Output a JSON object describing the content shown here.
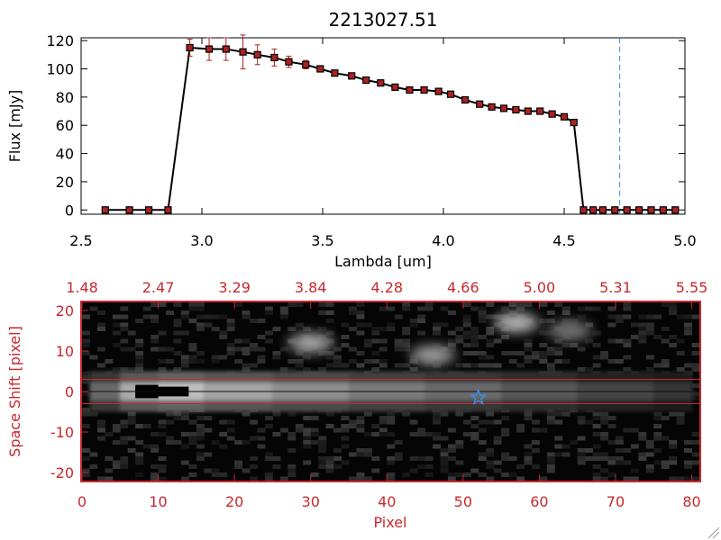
{
  "chart_data": [
    {
      "type": "line",
      "title": "2213027.51",
      "xlabel": "Lambda [um]",
      "ylabel": "Flux [mJy]",
      "xlim": [
        2.5,
        5.0
      ],
      "ylim": [
        -3,
        122
      ],
      "xticks": [
        "2.5",
        "3.0",
        "3.5",
        "4.0",
        "4.5",
        "5.0"
      ],
      "yticks": [
        "0",
        "20",
        "40",
        "60",
        "80",
        "100",
        "120"
      ],
      "marker_color": "#aa2222",
      "line_color": "#000000",
      "reference_line": {
        "x": 4.73,
        "color": "#3b8fe0",
        "style": "dashed"
      },
      "series": [
        {
          "points": [
            [
              2.6,
              0
            ],
            [
              2.7,
              0
            ],
            [
              2.78,
              0
            ],
            [
              2.86,
              0
            ],
            [
              2.95,
              115
            ],
            [
              3.03,
              114
            ],
            [
              3.1,
              114
            ],
            [
              3.17,
              112
            ],
            [
              3.23,
              110
            ],
            [
              3.3,
              108
            ],
            [
              3.36,
              105
            ],
            [
              3.43,
              103
            ],
            [
              3.49,
              100
            ],
            [
              3.55,
              97
            ],
            [
              3.62,
              95
            ],
            [
              3.68,
              92
            ],
            [
              3.74,
              90
            ],
            [
              3.8,
              87
            ],
            [
              3.86,
              85
            ],
            [
              3.92,
              85
            ],
            [
              3.98,
              84
            ],
            [
              4.03,
              82
            ],
            [
              4.09,
              78
            ],
            [
              4.15,
              75
            ],
            [
              4.2,
              73
            ],
            [
              4.25,
              72
            ],
            [
              4.3,
              71
            ],
            [
              4.35,
              70
            ],
            [
              4.4,
              70
            ],
            [
              4.45,
              68
            ],
            [
              4.5,
              66
            ],
            [
              4.54,
              62
            ],
            [
              4.58,
              0
            ],
            [
              4.62,
              0
            ],
            [
              4.66,
              0
            ],
            [
              4.71,
              0
            ],
            [
              4.76,
              0
            ],
            [
              4.81,
              0
            ],
            [
              4.86,
              0
            ],
            [
              4.91,
              0
            ],
            [
              4.96,
              0
            ]
          ],
          "errors": [
            0,
            0,
            0,
            0,
            6,
            8,
            8,
            12,
            7,
            6,
            4,
            3,
            2,
            2,
            2,
            2,
            2,
            2,
            1,
            1,
            1,
            1,
            1,
            1,
            1,
            1,
            1,
            1,
            1,
            1,
            1,
            1,
            0,
            0,
            0,
            0,
            0,
            0,
            0,
            0,
            0
          ]
        }
      ]
    },
    {
      "type": "heatmap",
      "xlabel": "Pixel",
      "ylabel": "Space Shift [pixel]",
      "xlim": [
        0,
        81
      ],
      "ylim": [
        -22,
        22
      ],
      "xticks": [
        "0",
        "10",
        "20",
        "30",
        "40",
        "50",
        "60",
        "70",
        "80"
      ],
      "yticks": [
        "-20",
        "-10",
        "0",
        "10",
        "20"
      ],
      "top_axis_ticks": [
        "1.48",
        "2.47",
        "3.29",
        "3.84",
        "4.28",
        "4.66",
        "5.00",
        "5.31",
        "5.55"
      ],
      "axis_color": "#c8282d",
      "aperture_lines_y": [
        3,
        -3
      ],
      "trace_center_y": 0,
      "source_marker": {
        "x": 52,
        "y": -1.5,
        "color": "#3b8fe0",
        "shape": "star"
      },
      "blobs": [
        {
          "x": 11,
          "y": 0,
          "intensity": 1.0
        },
        {
          "x": 30,
          "y": 12,
          "intensity": 0.65
        },
        {
          "x": 46,
          "y": 9,
          "intensity": 0.6
        },
        {
          "x": 57,
          "y": 17,
          "intensity": 0.7
        },
        {
          "x": 64,
          "y": 15,
          "intensity": 0.45
        }
      ],
      "trace_profile": [
        {
          "x": 1,
          "intensity": 0.35
        },
        {
          "x": 5,
          "intensity": 0.6
        },
        {
          "x": 10,
          "intensity": 0.95
        },
        {
          "x": 16,
          "intensity": 0.8
        },
        {
          "x": 25,
          "intensity": 0.7
        },
        {
          "x": 35,
          "intensity": 0.6
        },
        {
          "x": 45,
          "intensity": 0.52
        },
        {
          "x": 55,
          "intensity": 0.45
        },
        {
          "x": 65,
          "intensity": 0.35
        },
        {
          "x": 75,
          "intensity": 0.28
        },
        {
          "x": 80,
          "intensity": 0.22
        }
      ],
      "masked_region": {
        "x": [
          7,
          14
        ],
        "y": [
          -1.2,
          1.2
        ]
      }
    }
  ]
}
